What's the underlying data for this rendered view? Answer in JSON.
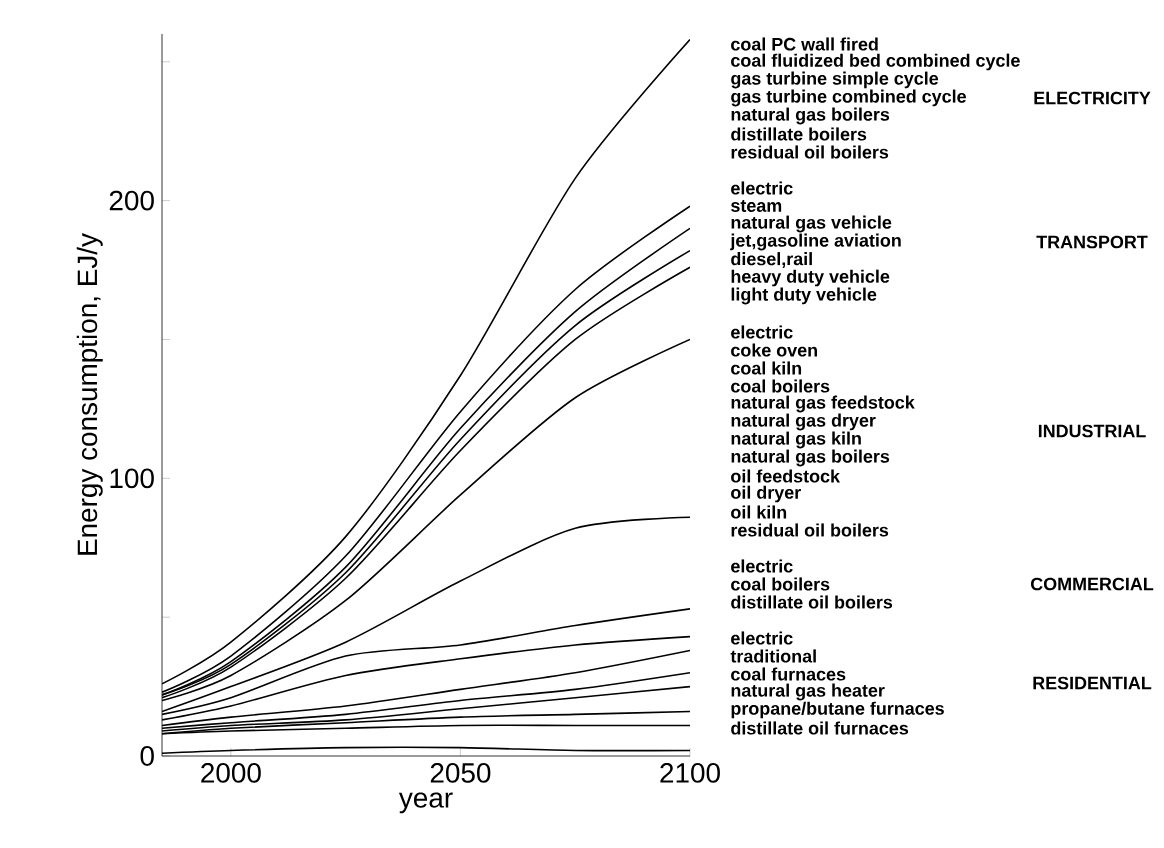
{
  "chart_data": {
    "type": "line",
    "xlabel": "year",
    "ylabel": "Energy consumption, EJ/y",
    "x": [
      1985,
      2000,
      2025,
      2050,
      2075,
      2100
    ],
    "xlim": [
      1985,
      2100
    ],
    "ylim": [
      0,
      260
    ],
    "xticks": [
      2000,
      2050,
      2100
    ],
    "yticks": [
      0,
      {
        "value": 50,
        "label": null
      },
      100,
      {
        "value": 150,
        "label": null
      },
      200,
      {
        "value": 250,
        "label": null
      }
    ],
    "series": [
      {
        "color": "#000000",
        "values": [
          26,
          41,
          79,
          137,
          208,
          258
        ]
      },
      {
        "color": "#000000",
        "values": [
          23,
          36,
          72,
          124,
          168,
          198
        ]
      },
      {
        "color": "#000000",
        "values": [
          22,
          34,
          68,
          118,
          160,
          190
        ]
      },
      {
        "color": "#000000",
        "values": [
          22,
          33,
          66,
          114,
          155,
          182
        ]
      },
      {
        "color": "#000000",
        "values": [
          21,
          32,
          64,
          110,
          150,
          176
        ]
      },
      {
        "color": "#000000",
        "values": [
          20,
          29,
          56,
          94,
          129,
          150
        ]
      },
      {
        "color": "#000000",
        "values": [
          16,
          25,
          41,
          63,
          82,
          86
        ]
      },
      {
        "color": "#000000",
        "values": [
          15,
          21,
          36,
          40,
          47,
          53
        ]
      },
      {
        "color": "#000000",
        "values": [
          13,
          18,
          29,
          35,
          40,
          43
        ]
      },
      {
        "color": "#000000",
        "values": [
          11,
          14,
          18,
          24,
          30,
          38
        ]
      },
      {
        "color": "#000000",
        "values": [
          10,
          12,
          15,
          20,
          24,
          30
        ]
      },
      {
        "color": "#000000",
        "values": [
          9,
          11,
          13,
          17,
          21,
          25
        ]
      },
      {
        "color": "#000000",
        "values": [
          8,
          10,
          12,
          14,
          15,
          16
        ]
      },
      {
        "color": "#000000",
        "values": [
          8,
          9,
          10,
          11,
          11,
          11
        ]
      },
      {
        "color": "#000000",
        "values": [
          1,
          2,
          3,
          3,
          2,
          2
        ]
      }
    ],
    "annotations": [
      "coal PC wall fired",
      "coal fluidized bed combined cycle",
      "gas turbine simple cycle",
      "gas turbine combined cycle",
      "natural gas boilers",
      "distillate boilers",
      "residual oil boilers",
      "ELECTRICITY",
      "electric",
      "steam",
      "natural gas vehicle",
      "jet,gasoline aviation",
      "diesel,rail",
      "heavy duty vehicle",
      "light duty vehicle",
      "TRANSPORT",
      "electric",
      "coke oven",
      "coal kiln",
      "coal boilers",
      "natural gas feedstock",
      "natural gas dryer",
      "natural gas kiln",
      "natural gas boilers",
      "oil feedstock",
      "oil dryer",
      "oil kiln",
      "residual oil boilers",
      "INDUSTRIAL",
      "electric",
      "coal boilers",
      "distillate oil boilers",
      "COMMERCIAL",
      "electric",
      "traditional",
      "coal furnaces",
      "natural gas heater",
      "propane/butane furnaces",
      "distillate oil furnaces",
      "RESIDENTIAL"
    ]
  }
}
